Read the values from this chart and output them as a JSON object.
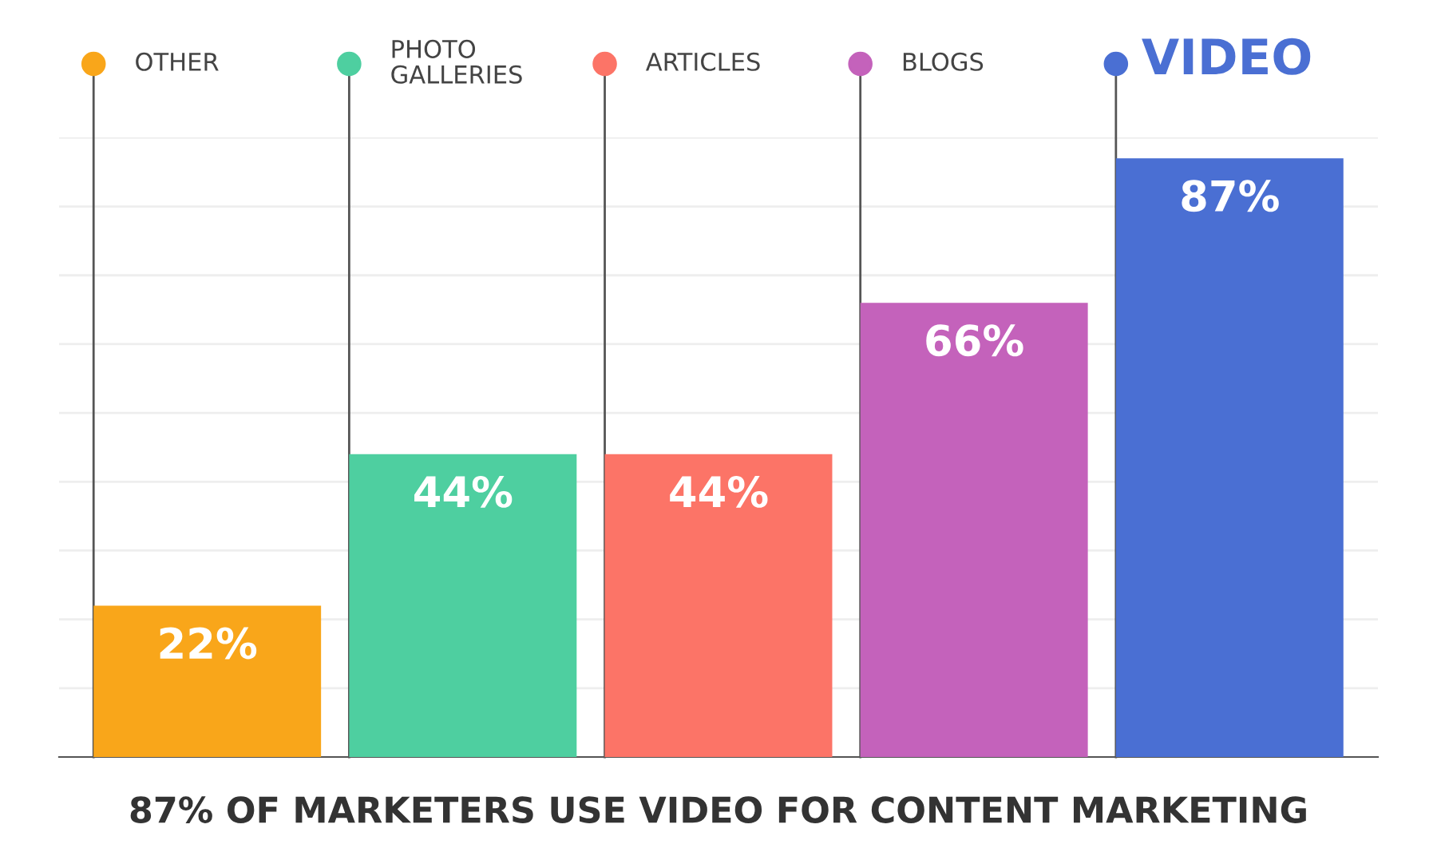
{
  "chart_data": {
    "type": "bar",
    "title": "87% OF MARKETERS USE VIDEO FOR CONTENT MARKETING",
    "categories": [
      "OTHER",
      "PHOTO\nGALLERIES",
      "ARTICLES",
      "BLOGS",
      "VIDEO"
    ],
    "values": [
      22,
      44,
      44,
      66,
      87
    ],
    "value_labels": [
      "22%",
      "44%",
      "44%",
      "66%",
      "87%"
    ],
    "colors": [
      "#f9a61a",
      "#4ecfa0",
      "#fc7467",
      "#c462bb",
      "#4a6fd3"
    ],
    "grid": "y"
  }
}
